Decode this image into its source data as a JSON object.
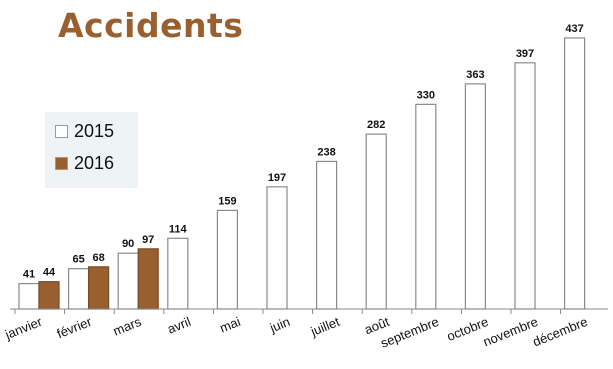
{
  "chart_data": {
    "type": "bar",
    "title": "Accidents",
    "categories": [
      "janvier",
      "février",
      "mars",
      "avril",
      "mai",
      "juin",
      "juillet",
      "août",
      "septembre",
      "octobre",
      "novembre",
      "décembre"
    ],
    "series": [
      {
        "name": "2015",
        "color": "#ffffff",
        "values": [
          41,
          65,
          90,
          114,
          159,
          197,
          238,
          282,
          330,
          363,
          397,
          437
        ]
      },
      {
        "name": "2016",
        "color": "#9a5f2e",
        "values": [
          44,
          68,
          97,
          null,
          null,
          null,
          null,
          null,
          null,
          null,
          null,
          null
        ]
      }
    ],
    "ylim": [
      0,
      450
    ],
    "grid": false,
    "legend_position": "left"
  }
}
